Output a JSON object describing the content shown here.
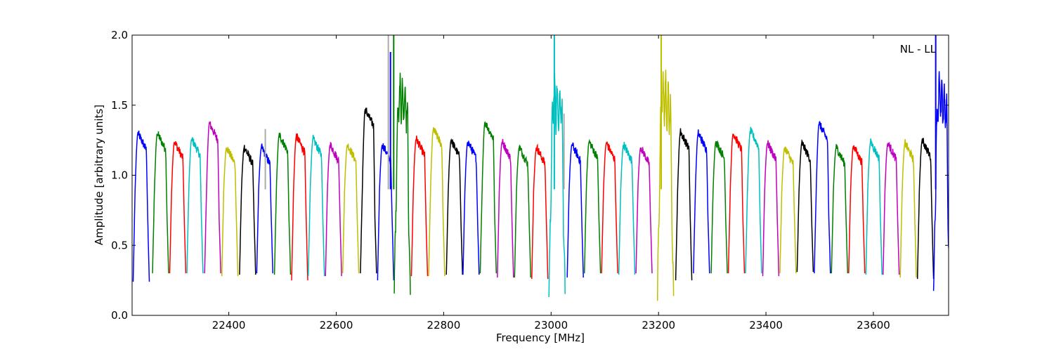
{
  "chart_data": {
    "type": "line",
    "title": "",
    "xlabel": "Frequency [MHz]",
    "ylabel": "Amplitude [arbitrary units]",
    "annotation": "NL - LL",
    "xlim": [
      22220,
      23740
    ],
    "ylim": [
      0.0,
      2.0
    ],
    "x_ticks": [
      22400,
      22600,
      22800,
      23000,
      23200,
      23400,
      23600
    ],
    "x_tick_labels": [
      "22400",
      "22600",
      "22800",
      "23000",
      "23200",
      "23400",
      "23600"
    ],
    "y_ticks": [
      0.0,
      0.5,
      1.0,
      1.5,
      2.0
    ],
    "y_tick_labels": [
      "0.0",
      "0.5",
      "1.0",
      "1.5",
      "2.0"
    ],
    "grid": false,
    "legend": "none",
    "palette": [
      "#0000ff",
      "#008000",
      "#ff0000",
      "#00bfbf",
      "#bf00bf",
      "#bfbf00",
      "#000000"
    ],
    "band_width_mhz": 30,
    "bands": [
      {
        "start": 22222,
        "peak": 1.3,
        "low": 0.24,
        "color": "#0000ff"
      },
      {
        "start": 22258,
        "peak": 1.3,
        "low": 0.3,
        "color": "#008000"
      },
      {
        "start": 22290,
        "peak": 1.24,
        "low": 0.3,
        "color": "#ff0000"
      },
      {
        "start": 22322,
        "peak": 1.26,
        "low": 0.3,
        "color": "#00bfbf"
      },
      {
        "start": 22355,
        "peak": 1.37,
        "low": 0.3,
        "color": "#bf00bf"
      },
      {
        "start": 22387,
        "peak": 1.2,
        "low": 0.28,
        "color": "#bfbf00"
      },
      {
        "start": 22420,
        "peak": 1.2,
        "low": 0.29,
        "color": "#000000"
      },
      {
        "start": 22452,
        "peak": 1.2,
        "low": 0.3,
        "color": "#0000ff"
      },
      {
        "start": 22485,
        "peak": 1.29,
        "low": 0.29,
        "color": "#008000"
      },
      {
        "start": 22517,
        "peak": 1.28,
        "low": 0.25,
        "color": "#ff0000"
      },
      {
        "start": 22548,
        "peak": 1.26,
        "low": 0.28,
        "color": "#00bfbf"
      },
      {
        "start": 22580,
        "peak": 1.22,
        "low": 0.28,
        "color": "#bf00bf"
      },
      {
        "start": 22612,
        "peak": 1.22,
        "low": 0.3,
        "color": "#bfbf00"
      },
      {
        "start": 22645,
        "peak": 1.47,
        "low": 0.3,
        "color": "#000000"
      },
      {
        "start": 22677,
        "peak": 1.22,
        "low": 0.25,
        "color": "#0000ff"
      },
      {
        "start": 22708,
        "peak": 1.57,
        "low": 0.12,
        "color": "#008000"
      },
      {
        "start": 22740,
        "peak": 1.26,
        "low": 0.28,
        "color": "#ff0000"
      },
      {
        "start": 22772,
        "peak": 1.33,
        "low": 0.28,
        "color": "#bfbf00"
      },
      {
        "start": 22805,
        "peak": 1.25,
        "low": 0.29,
        "color": "#000000"
      },
      {
        "start": 22836,
        "peak": 1.24,
        "low": 0.29,
        "color": "#0000ff"
      },
      {
        "start": 22868,
        "peak": 1.38,
        "low": 0.3,
        "color": "#008000"
      },
      {
        "start": 22900,
        "peak": 1.24,
        "low": 0.27,
        "color": "#bf00bf"
      },
      {
        "start": 22932,
        "peak": 1.2,
        "low": 0.27,
        "color": "#008000"
      },
      {
        "start": 22964,
        "peak": 1.2,
        "low": 0.26,
        "color": "#ff0000"
      },
      {
        "start": 22996,
        "peak": 1.56,
        "low": 0.12,
        "color": "#00bfbf"
      },
      {
        "start": 23030,
        "peak": 1.22,
        "low": 0.27,
        "color": "#0000ff"
      },
      {
        "start": 23062,
        "peak": 1.24,
        "low": 0.3,
        "color": "#008000"
      },
      {
        "start": 23094,
        "peak": 1.23,
        "low": 0.3,
        "color": "#ff0000"
      },
      {
        "start": 23126,
        "peak": 1.22,
        "low": 0.29,
        "color": "#00bfbf"
      },
      {
        "start": 23158,
        "peak": 1.2,
        "low": 0.3,
        "color": "#bf00bf"
      },
      {
        "start": 23198,
        "peak": 1.57,
        "low": 0.11,
        "color": "#bfbf00"
      },
      {
        "start": 23232,
        "peak": 1.31,
        "low": 0.25,
        "color": "#000000"
      },
      {
        "start": 23265,
        "peak": 1.3,
        "low": 0.3,
        "color": "#0000ff"
      },
      {
        "start": 23298,
        "peak": 1.24,
        "low": 0.3,
        "color": "#008000"
      },
      {
        "start": 23330,
        "peak": 1.3,
        "low": 0.3,
        "color": "#ff0000"
      },
      {
        "start": 23362,
        "peak": 1.32,
        "low": 0.3,
        "color": "#00bfbf"
      },
      {
        "start": 23394,
        "peak": 1.23,
        "low": 0.28,
        "color": "#bf00bf"
      },
      {
        "start": 23426,
        "peak": 1.2,
        "low": 0.3,
        "color": "#bfbf00"
      },
      {
        "start": 23458,
        "peak": 1.23,
        "low": 0.31,
        "color": "#000000"
      },
      {
        "start": 23490,
        "peak": 1.37,
        "low": 0.3,
        "color": "#0000ff"
      },
      {
        "start": 23522,
        "peak": 1.2,
        "low": 0.3,
        "color": "#008000"
      },
      {
        "start": 23554,
        "peak": 1.21,
        "low": 0.3,
        "color": "#ff0000"
      },
      {
        "start": 23586,
        "peak": 1.24,
        "low": 0.29,
        "color": "#00bfbf"
      },
      {
        "start": 23618,
        "peak": 1.23,
        "low": 0.29,
        "color": "#bf00bf"
      },
      {
        "start": 23650,
        "peak": 1.23,
        "low": 0.27,
        "color": "#bfbf00"
      },
      {
        "start": 23682,
        "peak": 1.25,
        "low": 0.26,
        "color": "#000000"
      },
      {
        "start": 23712,
        "peak": 1.57,
        "low": 0.12,
        "color": "#0000ff"
      }
    ],
    "spikes": [
      {
        "x": 22701,
        "y": 1.88,
        "color": "#0000ff"
      },
      {
        "x": 22707,
        "y": 2.0,
        "color": "#008000"
      },
      {
        "x": 22697,
        "y": 2.0,
        "color": "#aaaaaa"
      },
      {
        "x": 23006,
        "y": 2.0,
        "color": "#00bfbf"
      },
      {
        "x": 23024,
        "y": 1.44,
        "color": "#aaaaaa"
      },
      {
        "x": 23205,
        "y": 2.0,
        "color": "#bfbf00"
      },
      {
        "x": 23716,
        "y": 2.0,
        "color": "#0000ff"
      },
      {
        "x": 22468,
        "y": 1.33,
        "color": "#aaaaaa"
      }
    ]
  }
}
